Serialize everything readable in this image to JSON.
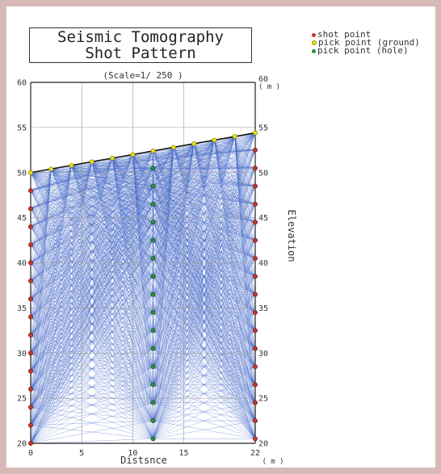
{
  "chart_data": {
    "type": "scatter",
    "title": "Seismic Tomography",
    "subtitle": "Shot Pattern",
    "scale_label": "(Scale=1/ 250 )",
    "xlabel": "Distsnce",
    "xunit": "( m )",
    "ylabel": "Elevation",
    "yunit": "( m )",
    "xlim": [
      0,
      22
    ],
    "ylim": [
      20,
      60
    ],
    "x_ticks": [
      0,
      5,
      10,
      15,
      22
    ],
    "y_ticks_left": [
      20,
      25,
      30,
      35,
      40,
      45,
      50,
      55,
      60
    ],
    "y_ticks_right": [
      20,
      25,
      30,
      35,
      40,
      45,
      50,
      55,
      60
    ],
    "grid": true,
    "legend_placement": "top-right",
    "series": [
      {
        "name": "shot point",
        "color": "#c0392b",
        "points": [
          [
            0,
            48
          ],
          [
            0,
            46
          ],
          [
            0,
            44
          ],
          [
            0,
            42
          ],
          [
            0,
            40
          ],
          [
            0,
            38
          ],
          [
            0,
            36
          ],
          [
            0,
            34
          ],
          [
            0,
            32
          ],
          [
            0,
            30
          ],
          [
            0,
            28
          ],
          [
            0,
            26
          ],
          [
            0,
            24
          ],
          [
            0,
            22
          ],
          [
            0,
            20
          ],
          [
            22,
            52.5
          ],
          [
            22,
            50.5
          ],
          [
            22,
            48.5
          ],
          [
            22,
            46.5
          ],
          [
            22,
            44.5
          ],
          [
            22,
            42.5
          ],
          [
            22,
            40.5
          ],
          [
            22,
            38.5
          ],
          [
            22,
            36.5
          ],
          [
            22,
            34.5
          ],
          [
            22,
            32.5
          ],
          [
            22,
            30.5
          ],
          [
            22,
            28.5
          ],
          [
            22,
            26.5
          ],
          [
            22,
            24.5
          ],
          [
            22,
            22.5
          ],
          [
            22,
            20.5
          ]
        ]
      },
      {
        "name": "pick point (ground)",
        "color": "#e8e020",
        "points": [
          [
            0,
            50
          ],
          [
            2,
            50.4
          ],
          [
            4,
            50.8
          ],
          [
            6,
            51.2
          ],
          [
            8,
            51.6
          ],
          [
            10,
            52
          ],
          [
            12,
            52.4
          ],
          [
            14,
            52.8
          ],
          [
            16,
            53.2
          ],
          [
            18,
            53.6
          ],
          [
            20,
            54
          ],
          [
            22,
            54.4
          ]
        ]
      },
      {
        "name": "pick point (hole)",
        "color": "#2e8b3a",
        "points": [
          [
            12,
            50.5
          ],
          [
            12,
            48.5
          ],
          [
            12,
            46.5
          ],
          [
            12,
            44.5
          ],
          [
            12,
            42.5
          ],
          [
            12,
            40.5
          ],
          [
            12,
            38.5
          ],
          [
            12,
            36.5
          ],
          [
            12,
            34.5
          ],
          [
            12,
            32.5
          ],
          [
            12,
            30.5
          ],
          [
            12,
            28.5
          ],
          [
            12,
            26.5
          ],
          [
            12,
            24.5
          ],
          [
            12,
            22.5
          ],
          [
            12,
            20.5
          ]
        ]
      }
    ],
    "ground_surface": [
      [
        0,
        50
      ],
      [
        22,
        54.4
      ]
    ],
    "ray_color": "#3a5fc4"
  }
}
